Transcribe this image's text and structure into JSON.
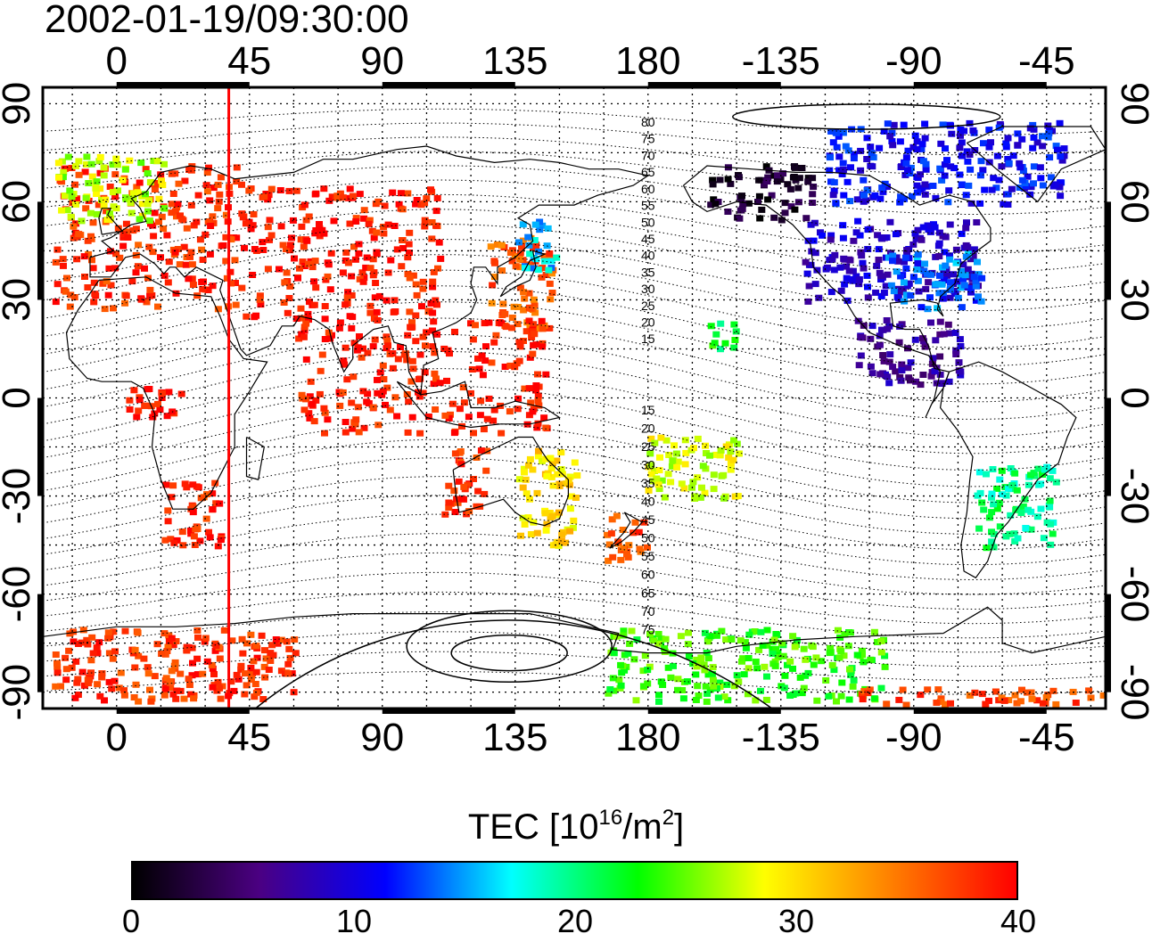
{
  "timestamp": "2002-01-19/09:30:00",
  "map": {
    "projection": "equirectangular",
    "lon_range": [
      -25,
      335
    ],
    "lat_range": [
      -95,
      95
    ],
    "top_x_ticks": [
      "0",
      "45",
      "90",
      "135",
      "180",
      "-135",
      "-90",
      "-45"
    ],
    "bottom_x_ticks": [
      "0",
      "45",
      "90",
      "135",
      "180",
      "-135",
      "-90",
      "-45"
    ],
    "left_y_ticks": [
      "90",
      "60",
      "30",
      "0",
      "-30",
      "-60",
      "-90"
    ],
    "right_y_ticks": [
      "90",
      "60",
      "30",
      "0",
      "-30",
      "-60",
      "-90"
    ],
    "grid": "dotted",
    "meridian_marker_lon": 38,
    "meridian_marker_color": "#ff0000",
    "contour_labels_north": [
      "80",
      "75",
      "70",
      "65",
      "60",
      "55",
      "50",
      "45",
      "40",
      "35",
      "30",
      "25",
      "20",
      "15"
    ],
    "contour_labels_south": [
      "15",
      "20",
      "25",
      "30",
      "35",
      "40",
      "45",
      "50",
      "55",
      "60",
      "65",
      "70",
      "75"
    ]
  },
  "colorbar": {
    "title_prefix": "TEC  [10",
    "title_exp1": "16",
    "title_mid": "/m",
    "title_exp2": "2",
    "title_suffix": "]",
    "min": 0,
    "max": 40,
    "tick_labels": [
      "0",
      "10",
      "20",
      "30",
      "40"
    ],
    "colormap": "jet",
    "colors": [
      "#000000",
      "#4b0082",
      "#0000ff",
      "#00ffff",
      "#00ff00",
      "#ffff00",
      "#ff8000",
      "#ff0000"
    ]
  },
  "tec_regions": [
    {
      "name": "europe",
      "lon": [
        -22,
        42
      ],
      "lat": [
        28,
        72
      ],
      "tec": 38
    },
    {
      "name": "europe-north",
      "lon": [
        -22,
        15
      ],
      "lat": [
        55,
        75
      ],
      "tec": 27
    },
    {
      "name": "russia-scatter",
      "lon": [
        42,
        110
      ],
      "lat": [
        25,
        65
      ],
      "tec": 39
    },
    {
      "name": "japan",
      "lon": [
        125,
        148
      ],
      "lat": [
        22,
        50
      ],
      "tec": 36
    },
    {
      "name": "japan-north",
      "lon": [
        135,
        148
      ],
      "lat": [
        38,
        55
      ],
      "tec": 16
    },
    {
      "name": "south-asia",
      "lon": [
        60,
        145
      ],
      "lat": [
        -10,
        25
      ],
      "tec": 39
    },
    {
      "name": "africa-west",
      "lon": [
        3,
        25
      ],
      "lat": [
        -5,
        5
      ],
      "tec": 39
    },
    {
      "name": "southern-africa",
      "lon": [
        15,
        35
      ],
      "lat": [
        -45,
        -25
      ],
      "tec": 38
    },
    {
      "name": "australia-west",
      "lon": [
        110,
        125
      ],
      "lat": [
        -35,
        -15
      ],
      "tec": 38
    },
    {
      "name": "australia-east",
      "lon": [
        135,
        155
      ],
      "lat": [
        -45,
        -15
      ],
      "tec": 30
    },
    {
      "name": "new-zealand",
      "lon": [
        165,
        180
      ],
      "lat": [
        -50,
        -35
      ],
      "tec": 37
    },
    {
      "name": "pacific-islands",
      "lon": [
        178,
        210
      ],
      "lat": [
        -30,
        -10
      ],
      "tec": 28
    },
    {
      "name": "hawaii",
      "lon": [
        200,
        210
      ],
      "lat": [
        15,
        25
      ],
      "tec": 22
    },
    {
      "name": "north-america",
      "lon": [
        232,
        292
      ],
      "lat": [
        30,
        55
      ],
      "tec": 9
    },
    {
      "name": "north-america-east",
      "lon": [
        260,
        292
      ],
      "lat": [
        28,
        45
      ],
      "tec": 14
    },
    {
      "name": "alaska",
      "lon": [
        200,
        235
      ],
      "lat": [
        55,
        72
      ],
      "tec": 2
    },
    {
      "name": "canada-arctic",
      "lon": [
        240,
        320
      ],
      "lat": [
        60,
        85
      ],
      "tec": 11
    },
    {
      "name": "central-america",
      "lon": [
        250,
        285
      ],
      "lat": [
        5,
        25
      ],
      "tec": 7
    },
    {
      "name": "south-america",
      "lon": [
        290,
        318
      ],
      "lat": [
        -45,
        -20
      ],
      "tec": 20
    },
    {
      "name": "antarctic-south-pacific",
      "lon": [
        165,
        260
      ],
      "lat": [
        -92,
        -70
      ],
      "tec": 24
    },
    {
      "name": "antarctic-sector-east",
      "lon": [
        250,
        335
      ],
      "lat": [
        -93,
        -88
      ],
      "tec": 37
    },
    {
      "name": "antarctic-west",
      "lon": [
        -22,
        60
      ],
      "lat": [
        -92,
        -70
      ],
      "tec": 38
    }
  ]
}
